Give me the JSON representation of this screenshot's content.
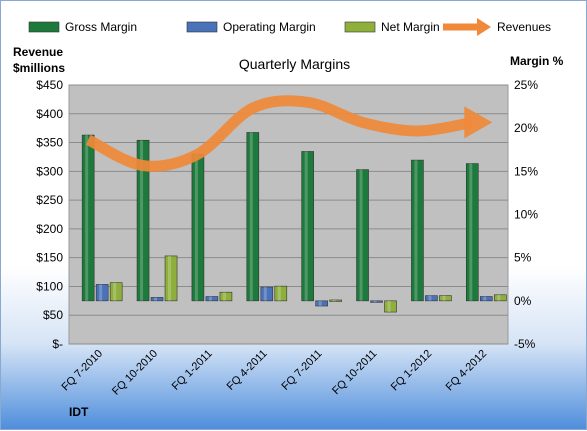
{
  "chart_data": {
    "type": "bar",
    "title": "Quarterly Margins",
    "company": "IDT",
    "categories": [
      "FQ 7-2010",
      "FQ 10-2010",
      "FQ 1-2011",
      "FQ 4-2011",
      "FQ 7-2011",
      "FQ 10-2011",
      "FQ 1-2012",
      "FQ 4-2012"
    ],
    "series": [
      {
        "name": "Gross Margin",
        "axis": "right",
        "color": "#1e7a3c",
        "values": [
          19.2,
          18.6,
          17.0,
          19.5,
          17.3,
          15.2,
          16.3,
          15.9
        ]
      },
      {
        "name": "Operating Margin",
        "axis": "right",
        "color": "#4a72b8",
        "values": [
          1.9,
          0.4,
          0.5,
          1.6,
          -0.6,
          -0.1,
          0.6,
          0.5
        ]
      },
      {
        "name": "Net Margin",
        "axis": "right",
        "color": "#8faf3c",
        "values": [
          2.1,
          5.2,
          1.0,
          1.7,
          0.1,
          -1.3,
          0.6,
          0.7
        ]
      },
      {
        "name": "Revenues",
        "axis": "left",
        "type": "line",
        "color": "#f0893a",
        "values": [
          355,
          310,
          330,
          410,
          420,
          385,
          370,
          385
        ]
      }
    ],
    "ylabel_left": "Revenue $millions",
    "ylabel_right": "Margin %",
    "yticks_left": [
      "$450",
      "$400",
      "$350",
      "$300",
      "$250",
      "$200",
      "$150",
      "$100",
      "$50",
      "$-"
    ],
    "yticks_right": [
      "25%",
      "20%",
      "15%",
      "10%",
      "5%",
      "0%",
      "-5%"
    ],
    "ylim_left": [
      0,
      450
    ],
    "ylim_right": [
      -5,
      25
    ],
    "grid": true,
    "legend_position": "top"
  }
}
